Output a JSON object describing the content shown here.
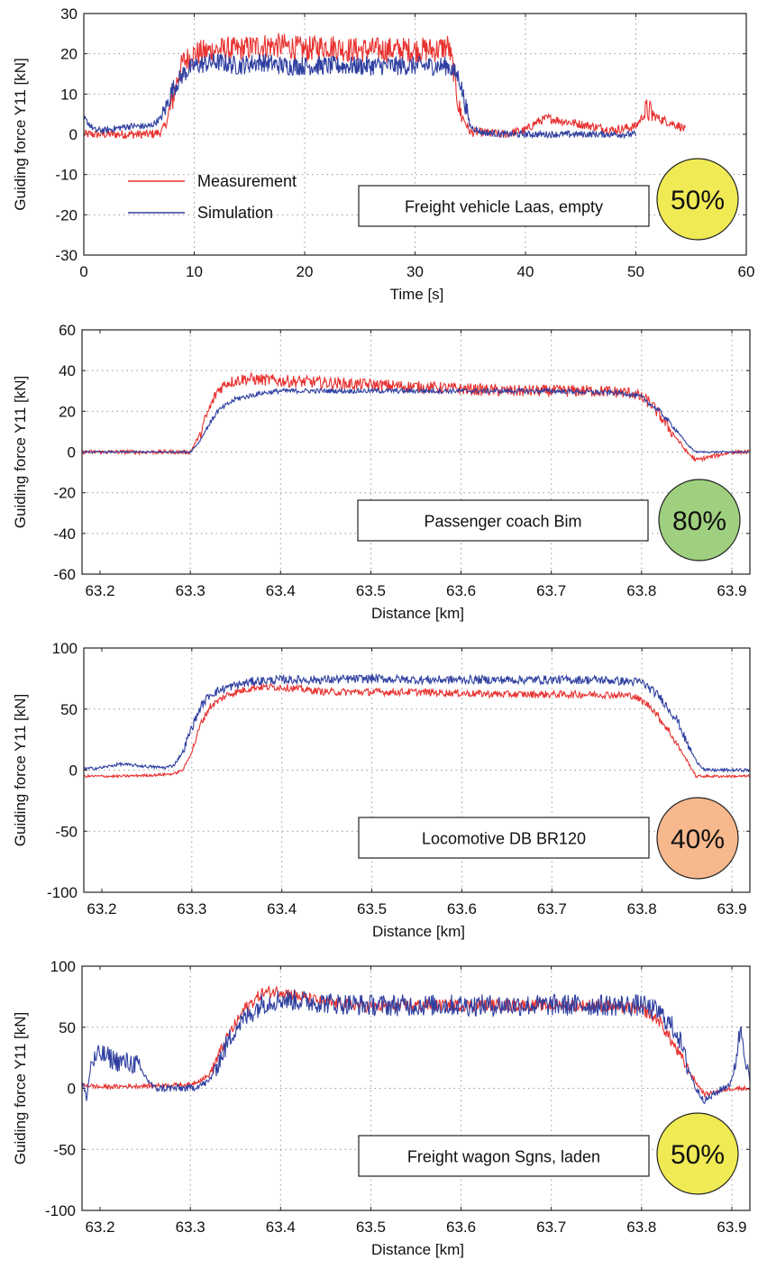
{
  "chart_data": [
    {
      "type": "line",
      "ylabel": "Guiding force Y11  [kN]",
      "xlabel": "Time [s]",
      "xlim": [
        0,
        60
      ],
      "ylim": [
        -30,
        30
      ],
      "xticks": [
        "0",
        "10",
        "20",
        "30",
        "40",
        "50",
        "60"
      ],
      "yticks": [
        "30",
        "20",
        "10",
        "0",
        "-10",
        "-20",
        "-30"
      ],
      "grid": true,
      "legend_position": "lower-left",
      "annotation": "Freight vehicle Laas, empty",
      "rating": {
        "text": "50%",
        "color": "#f0ea55"
      },
      "series": [
        {
          "name": "Measurement",
          "color": "#e8312f",
          "x": [
            0,
            2,
            4,
            6,
            7,
            7.5,
            8,
            8.5,
            9,
            10,
            12,
            14,
            16,
            18,
            20,
            22,
            24,
            26,
            28,
            30,
            32,
            33,
            33.5,
            34,
            35,
            36,
            38,
            40,
            41,
            42,
            44,
            46,
            48,
            50,
            51,
            52,
            53,
            54,
            54.5
          ],
          "y": [
            0,
            0,
            0,
            0,
            0.5,
            3,
            8,
            14,
            18,
            20,
            21,
            21,
            22,
            22,
            21,
            22,
            21,
            21,
            21,
            21,
            21,
            22,
            16,
            6,
            0.5,
            0.5,
            0,
            1,
            3,
            4,
            3,
            2,
            1,
            2,
            6,
            4,
            3,
            2,
            1
          ]
        },
        {
          "name": "Simulation",
          "color": "#2f3fa0",
          "x": [
            0,
            1,
            2,
            4,
            6,
            7,
            7.5,
            8,
            9,
            10,
            12,
            14,
            16,
            18,
            20,
            22,
            24,
            26,
            28,
            30,
            32,
            33,
            34,
            34.5,
            35,
            36,
            38,
            40,
            44,
            48,
            50
          ],
          "y": [
            4,
            1,
            1,
            2,
            2,
            4,
            7,
            11,
            15,
            17,
            18,
            17,
            18,
            17,
            17,
            17,
            17,
            17,
            17,
            17,
            17,
            17,
            14,
            8,
            2,
            0.5,
            0,
            0,
            0,
            0,
            0
          ]
        }
      ]
    },
    {
      "type": "line",
      "ylabel": "Guiding force Y11  [kN]",
      "xlabel": "Distance [km]",
      "xlim": [
        63.18,
        63.92
      ],
      "ylim": [
        -60,
        60
      ],
      "xticks": [
        "63.2",
        "63.3",
        "63.4",
        "63.5",
        "63.6",
        "63.7",
        "63.8",
        "63.9"
      ],
      "yticks": [
        "60",
        "40",
        "20",
        "0",
        "-20",
        "-40",
        "-60"
      ],
      "grid": true,
      "annotation": "Passenger coach Bim",
      "rating": {
        "text": "80%",
        "color": "#9fd07f"
      },
      "series": [
        {
          "name": "Measurement",
          "color": "#e8312f",
          "x": [
            63.18,
            63.22,
            63.26,
            63.3,
            63.31,
            63.32,
            63.33,
            63.34,
            63.36,
            63.4,
            63.45,
            63.5,
            63.55,
            63.6,
            63.65,
            63.7,
            63.75,
            63.79,
            63.81,
            63.83,
            63.85,
            63.86,
            63.88,
            63.9,
            63.92
          ],
          "y": [
            0,
            0,
            0,
            0,
            8,
            20,
            30,
            34,
            36,
            35,
            34,
            33,
            32,
            31,
            30,
            30,
            30,
            29,
            24,
            12,
            0,
            -4,
            -2,
            0,
            0
          ]
        },
        {
          "name": "Simulation",
          "color": "#2f3fa0",
          "x": [
            63.18,
            63.26,
            63.3,
            63.31,
            63.32,
            63.33,
            63.35,
            63.38,
            63.4,
            63.5,
            63.6,
            63.7,
            63.78,
            63.8,
            63.82,
            63.84,
            63.85,
            63.86,
            63.88,
            63.92
          ],
          "y": [
            0,
            0,
            0,
            5,
            13,
            20,
            26,
            29,
            30,
            30,
            30,
            30,
            29,
            27,
            20,
            10,
            4,
            0,
            0,
            0
          ]
        }
      ]
    },
    {
      "type": "line",
      "ylabel": "Guiding force Y11  [kN]",
      "xlabel": "Distance [km]",
      "xlim": [
        63.18,
        63.92
      ],
      "ylim": [
        -100,
        100
      ],
      "xticks": [
        "63.2",
        "63.3",
        "63.4",
        "63.5",
        "63.6",
        "63.7",
        "63.8",
        "63.9"
      ],
      "yticks": [
        "100",
        "50",
        "0",
        "-50",
        "-100"
      ],
      "grid": true,
      "annotation": "Locomotive DB BR120",
      "rating": {
        "text": "40%",
        "color": "#f7b88d"
      },
      "series": [
        {
          "name": "Measurement",
          "color": "#e8312f",
          "x": [
            63.18,
            63.22,
            63.26,
            63.28,
            63.29,
            63.3,
            63.31,
            63.32,
            63.34,
            63.37,
            63.4,
            63.45,
            63.5,
            63.55,
            63.6,
            63.65,
            63.7,
            63.75,
            63.79,
            63.81,
            63.83,
            63.85,
            63.86,
            63.9,
            63.92
          ],
          "y": [
            -5,
            -5,
            -4,
            -3,
            0,
            15,
            38,
            52,
            62,
            68,
            68,
            64,
            64,
            64,
            63,
            62,
            62,
            62,
            61,
            52,
            32,
            8,
            -5,
            -5,
            -5
          ]
        },
        {
          "name": "Simulation",
          "color": "#2f3fa0",
          "x": [
            63.18,
            63.2,
            63.22,
            63.25,
            63.27,
            63.28,
            63.29,
            63.3,
            63.31,
            63.32,
            63.34,
            63.37,
            63.4,
            63.45,
            63.5,
            63.55,
            63.6,
            63.65,
            63.7,
            63.75,
            63.8,
            63.82,
            63.84,
            63.85,
            63.86,
            63.87,
            63.9,
            63.92
          ],
          "y": [
            1,
            2,
            5,
            3,
            2,
            4,
            15,
            35,
            52,
            62,
            68,
            73,
            74,
            74,
            75,
            74,
            74,
            74,
            74,
            74,
            72,
            60,
            40,
            22,
            8,
            0,
            0,
            0
          ]
        }
      ]
    },
    {
      "type": "line",
      "ylabel": "Guiding force Y11  [kN]",
      "xlabel": "Distance [km]",
      "xlim": [
        63.18,
        63.92
      ],
      "ylim": [
        -100,
        100
      ],
      "xticks": [
        "63.2",
        "63.3",
        "63.4",
        "63.5",
        "63.6",
        "63.7",
        "63.8",
        "63.9"
      ],
      "yticks": [
        "100",
        "50",
        "0",
        "-50",
        "-100"
      ],
      "grid": true,
      "annotation": "Freight wagon Sgns, laden",
      "rating": {
        "text": "50%",
        "color": "#f0ea55"
      },
      "series": [
        {
          "name": "Measurement",
          "color": "#e8312f",
          "x": [
            63.18,
            63.2,
            63.25,
            63.3,
            63.32,
            63.34,
            63.36,
            63.38,
            63.4,
            63.42,
            63.45,
            63.5,
            63.55,
            63.6,
            63.65,
            63.7,
            63.75,
            63.8,
            63.82,
            63.84,
            63.86,
            63.87,
            63.9,
            63.92
          ],
          "y": [
            3,
            1,
            2,
            3,
            10,
            40,
            65,
            78,
            80,
            75,
            70,
            67,
            68,
            68,
            68,
            68,
            68,
            65,
            55,
            30,
            5,
            -5,
            0,
            0
          ]
        },
        {
          "name": "Simulation",
          "color": "#2f3fa0",
          "x": [
            63.18,
            63.185,
            63.19,
            63.2,
            63.22,
            63.24,
            63.25,
            63.26,
            63.3,
            63.32,
            63.33,
            63.35,
            63.38,
            63.4,
            63.45,
            63.5,
            63.55,
            63.6,
            63.65,
            63.7,
            63.75,
            63.8,
            63.82,
            63.84,
            63.85,
            63.86,
            63.87,
            63.9,
            63.91,
            63.92
          ],
          "y": [
            5,
            -8,
            20,
            28,
            22,
            20,
            10,
            0,
            0,
            5,
            20,
            50,
            70,
            73,
            70,
            68,
            68,
            68,
            68,
            68,
            68,
            68,
            62,
            45,
            20,
            0,
            -10,
            5,
            50,
            5
          ]
        }
      ]
    }
  ]
}
